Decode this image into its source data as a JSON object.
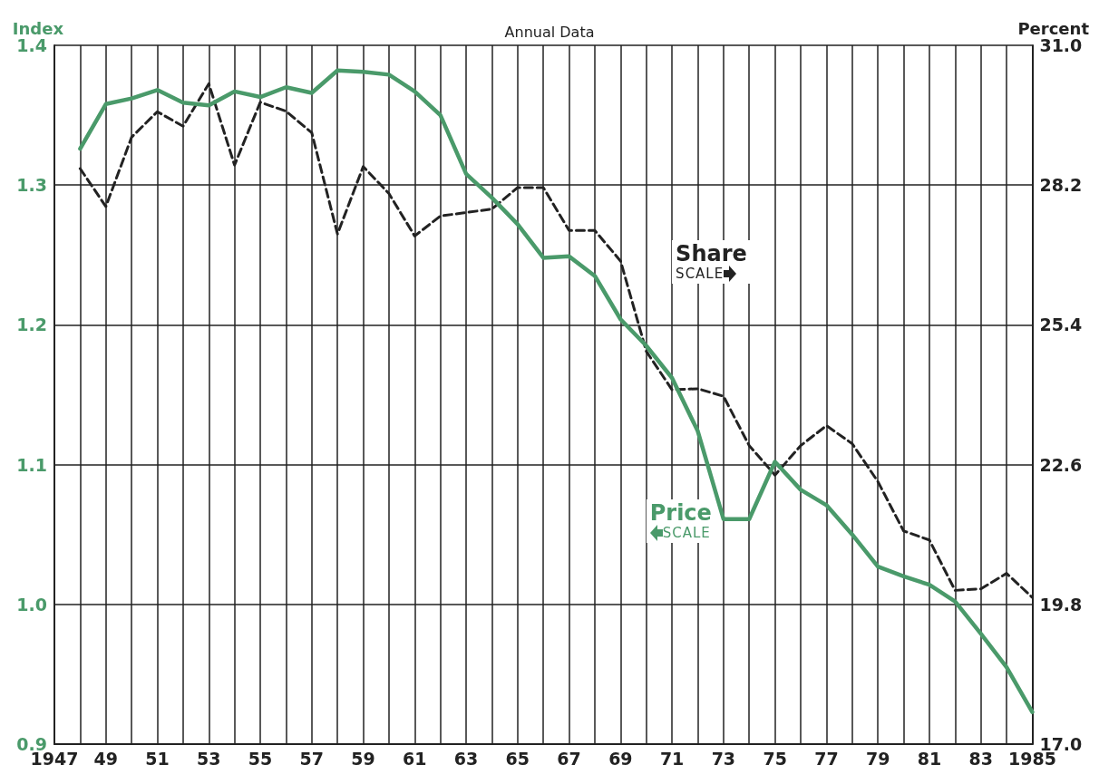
{
  "chart_data": {
    "type": "line",
    "title": "Annual Data",
    "ylabel": "Index",
    "y2label": "Percent",
    "x": [
      1948,
      1949,
      1950,
      1951,
      1952,
      1953,
      1954,
      1955,
      1956,
      1957,
      1958,
      1959,
      1960,
      1961,
      1962,
      1963,
      1964,
      1965,
      1966,
      1967,
      1968,
      1969,
      1970,
      1971,
      1972,
      1973,
      1974,
      1975,
      1976,
      1977,
      1978,
      1979,
      1980,
      1981,
      1982,
      1983,
      1984,
      1985
    ],
    "series": [
      {
        "name": "Share",
        "color": "#222222",
        "axis": "y2",
        "line_style": "dashed",
        "values": [
          28.53,
          27.77,
          29.16,
          29.67,
          29.38,
          30.23,
          28.6,
          29.86,
          29.68,
          29.25,
          27.22,
          28.57,
          28.03,
          27.18,
          27.58,
          27.65,
          27.72,
          28.15,
          28.15,
          27.29,
          27.29,
          26.68,
          24.87,
          24.1,
          24.12,
          23.97,
          22.98,
          22.39,
          22.98,
          23.38,
          23.02,
          22.26,
          21.27,
          21.09,
          20.08,
          20.11,
          20.42,
          19.94
        ]
      },
      {
        "name": "Price",
        "color": "#4a9a6a",
        "axis": "y",
        "line_style": "solid",
        "values": [
          1.326,
          1.358,
          1.362,
          1.368,
          1.359,
          1.357,
          1.367,
          1.363,
          1.37,
          1.366,
          1.382,
          1.381,
          1.379,
          1.367,
          1.35,
          1.308,
          1.291,
          1.272,
          1.248,
          1.249,
          1.235,
          1.204,
          1.185,
          1.162,
          1.124,
          1.061,
          1.061,
          1.102,
          1.082,
          1.071,
          1.05,
          1.027,
          1.02,
          1.014,
          1.002,
          0.979,
          0.955,
          0.923
        ]
      }
    ],
    "annotations": [
      "SCALE",
      "SCALE"
    ],
    "xlim": [
      1947,
      1985
    ],
    "xticks": [
      {
        "value": 1947,
        "label": "1947"
      },
      {
        "value": 1948,
        "label": null
      },
      {
        "value": 1949,
        "label": "49"
      },
      {
        "value": 1950,
        "label": null
      },
      {
        "value": 1951,
        "label": "51"
      },
      {
        "value": 1952,
        "label": null
      },
      {
        "value": 1953,
        "label": "53"
      },
      {
        "value": 1954,
        "label": null
      },
      {
        "value": 1955,
        "label": "55"
      },
      {
        "value": 1956,
        "label": null
      },
      {
        "value": 1957,
        "label": "57"
      },
      {
        "value": 1958,
        "label": null
      },
      {
        "value": 1959,
        "label": "59"
      },
      {
        "value": 1960,
        "label": null
      },
      {
        "value": 1961,
        "label": "61"
      },
      {
        "value": 1962,
        "label": null
      },
      {
        "value": 1963,
        "label": "63"
      },
      {
        "value": 1964,
        "label": null
      },
      {
        "value": 1965,
        "label": "65"
      },
      {
        "value": 1966,
        "label": null
      },
      {
        "value": 1967,
        "label": "67"
      },
      {
        "value": 1968,
        "label": null
      },
      {
        "value": 1969,
        "label": "69"
      },
      {
        "value": 1970,
        "label": null
      },
      {
        "value": 1971,
        "label": "71"
      },
      {
        "value": 1972,
        "label": null
      },
      {
        "value": 1973,
        "label": "73"
      },
      {
        "value": 1974,
        "label": null
      },
      {
        "value": 1975,
        "label": "75"
      },
      {
        "value": 1976,
        "label": null
      },
      {
        "value": 1977,
        "label": "77"
      },
      {
        "value": 1978,
        "label": null
      },
      {
        "value": 1979,
        "label": "79"
      },
      {
        "value": 1980,
        "label": null
      },
      {
        "value": 1981,
        "label": "81"
      },
      {
        "value": 1982,
        "label": null
      },
      {
        "value": 1983,
        "label": "83"
      },
      {
        "value": 1984,
        "label": null
      },
      {
        "value": 1985,
        "label": "1985"
      }
    ],
    "ylim": [
      0.9,
      1.4
    ],
    "yticks": [
      {
        "value": 0.9,
        "label": "0.9"
      },
      {
        "value": 1,
        "label": "1.0"
      },
      {
        "value": 1.1,
        "label": "1.1"
      },
      {
        "value": 1.2,
        "label": "1.2"
      },
      {
        "value": 1.3,
        "label": "1.3"
      },
      {
        "value": 1.4,
        "label": "1.4"
      }
    ],
    "y2lim": [
      17,
      31
    ],
    "y2ticks": [
      {
        "value": 17,
        "label": "17.0"
      },
      {
        "value": 19.8,
        "label": "19.8"
      },
      {
        "value": 22.6,
        "label": "22.6"
      },
      {
        "value": 25.4,
        "label": "25.4"
      },
      {
        "value": 28.2,
        "label": "28.2"
      },
      {
        "value": 31,
        "label": "31.0"
      }
    ],
    "grid": true,
    "marker": "none",
    "legend": false
  }
}
